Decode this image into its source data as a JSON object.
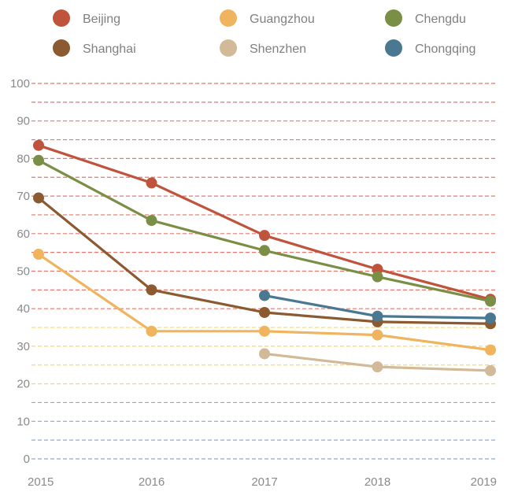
{
  "chart_data": {
    "type": "line",
    "title": "",
    "xlabel": "",
    "ylabel": "",
    "x": [
      "2015",
      "2016",
      "2017",
      "2018",
      "2019"
    ],
    "ylim": [
      0,
      100
    ],
    "yticks": [
      0,
      10,
      20,
      30,
      40,
      50,
      60,
      70,
      80,
      90,
      100
    ],
    "legend_position": "top",
    "series": [
      {
        "name": "Beijing",
        "color": "#c0533b",
        "values": [
          83.5,
          73.5,
          59.5,
          50.5,
          42.5
        ]
      },
      {
        "name": "Shanghai",
        "color": "#8b5a30",
        "values": [
          69.5,
          45,
          39,
          36.5,
          36
        ]
      },
      {
        "name": "Guangzhou",
        "color": "#efb45d",
        "values": [
          54.5,
          34,
          34,
          33,
          29
        ]
      },
      {
        "name": "Shenzhen",
        "color": "#d2b997",
        "values": [
          null,
          null,
          28,
          24.5,
          23.5
        ]
      },
      {
        "name": "Chengdu",
        "color": "#7a8f45",
        "values": [
          79.5,
          63.5,
          55.5,
          48.5,
          42
        ]
      },
      {
        "name": "Chongqing",
        "color": "#497890",
        "values": [
          null,
          null,
          43.5,
          38,
          37.5
        ]
      }
    ],
    "gridline_colors": {
      "high": "#e07a70",
      "mid": "#f5d67a",
      "low": "#8fa8cc"
    }
  }
}
